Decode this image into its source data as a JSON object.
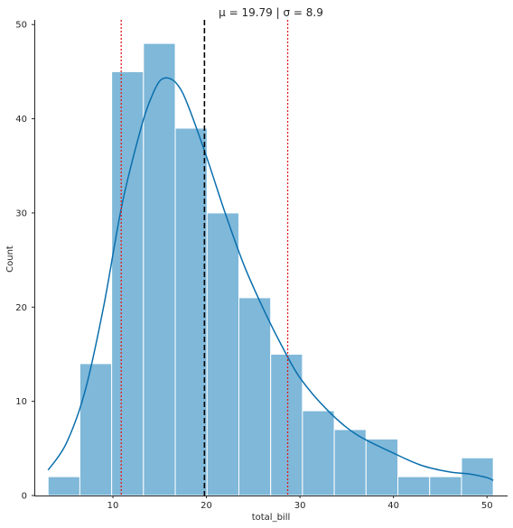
{
  "chart_data": {
    "type": "bar",
    "title": "μ = 19.79 | σ = 8.9",
    "xlabel": "total_bill",
    "ylabel": "Count",
    "xlim": [
      1.6,
      52.2
    ],
    "ylim": [
      0,
      50.5
    ],
    "xticks": [
      10,
      20,
      30,
      40,
      50
    ],
    "yticks": [
      0,
      10,
      20,
      30,
      40,
      50
    ],
    "bins": {
      "edges": [
        3.07,
        6.47,
        9.87,
        13.27,
        16.67,
        20.07,
        23.47,
        26.87,
        30.27,
        33.67,
        37.07,
        40.47,
        43.87,
        47.27,
        50.67
      ],
      "counts": [
        2,
        14,
        45,
        48,
        39,
        30,
        21,
        15,
        9,
        7,
        6,
        2,
        2,
        4
      ]
    },
    "kde": {
      "x": [
        3.07,
        5,
        7,
        9,
        11,
        13,
        14,
        15,
        16,
        17,
        18,
        20,
        22,
        24,
        26,
        28,
        30,
        33,
        36,
        40,
        43,
        46,
        48,
        50,
        50.67
      ],
      "y": [
        2.7,
        5.5,
        11,
        20,
        31,
        39,
        42,
        44,
        44.3,
        43.5,
        41.5,
        36,
        30,
        24.5,
        20,
        16,
        12.5,
        9,
        6.5,
        4.5,
        3.2,
        2.5,
        2.3,
        1.9,
        1.6
      ]
    },
    "reference_lines": [
      {
        "name": "mean",
        "x": 19.79,
        "style": "dashed",
        "color": "#000000"
      },
      {
        "name": "mean-minus-sd",
        "x": 10.89,
        "style": "dotted",
        "color": "#e31a1c"
      },
      {
        "name": "mean-plus-sd",
        "x": 28.69,
        "style": "dotted",
        "color": "#e31a1c"
      }
    ],
    "colors": {
      "bar": "#7fb8d9",
      "kde": "#0a6fad"
    },
    "grid": false,
    "legend": "none"
  }
}
